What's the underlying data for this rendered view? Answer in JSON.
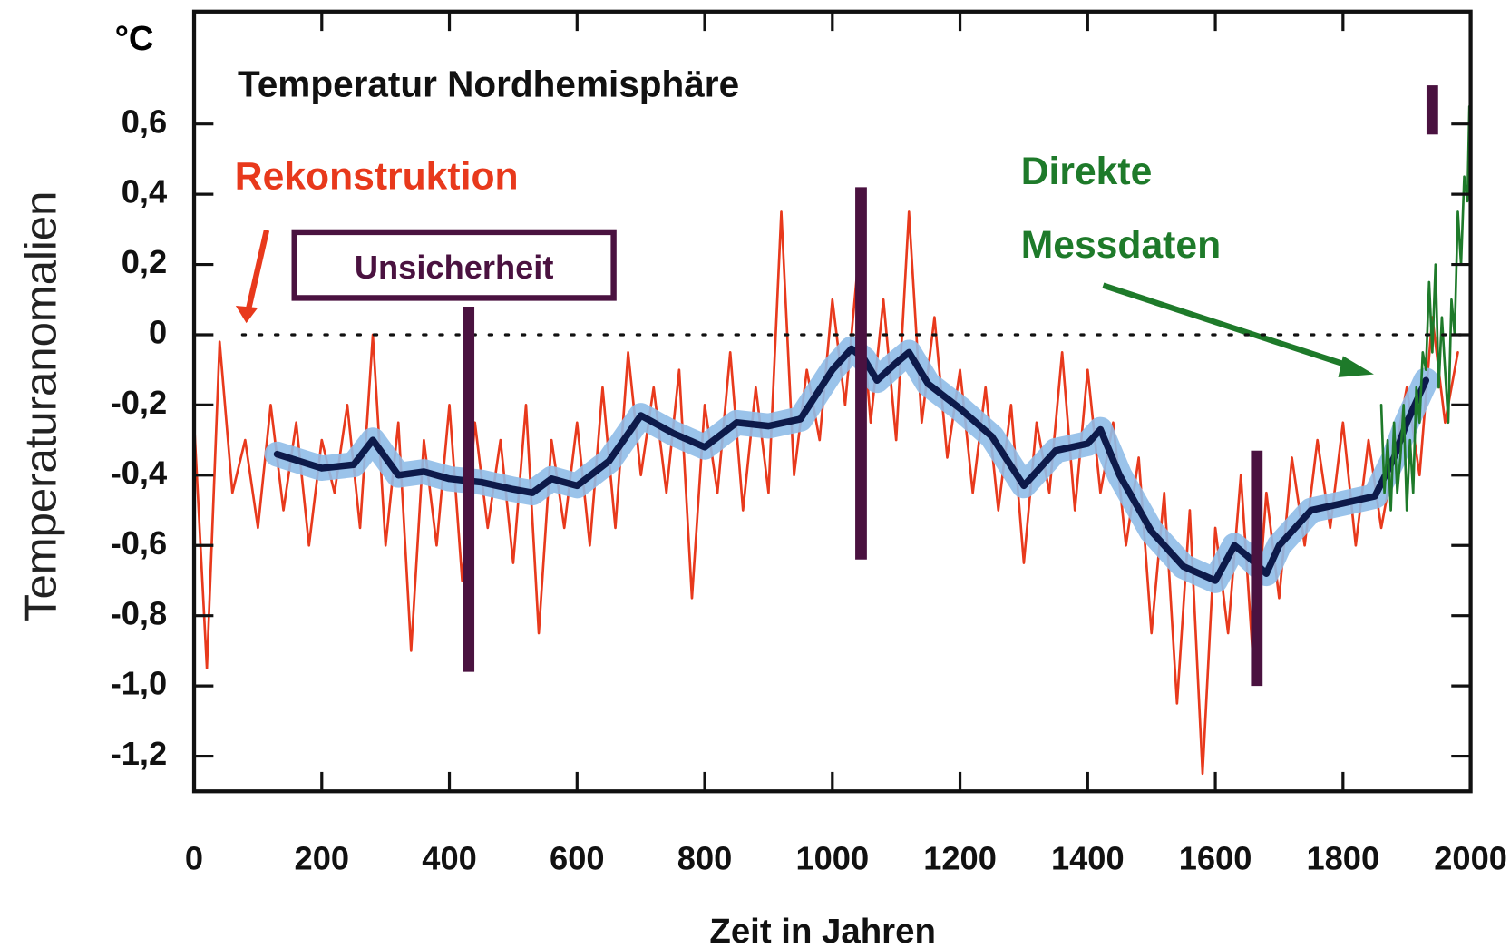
{
  "chart_data": {
    "type": "line",
    "title": "Temperatur Nordhemisphäre",
    "y_unit": "°C",
    "x_label": "Zeit in Jahren",
    "y_label": "Temperaturanomalien",
    "xlim": [
      0,
      2000
    ],
    "ylim": [
      -1.3,
      0.92
    ],
    "xticks": [
      0,
      200,
      400,
      600,
      800,
      1000,
      1200,
      1400,
      1600,
      1800,
      2000
    ],
    "yticks": [
      {
        "value": 0.6,
        "label": "0,6"
      },
      {
        "value": 0.4,
        "label": "0,4"
      },
      {
        "value": 0.2,
        "label": "0,2"
      },
      0,
      {
        "value": -0.2,
        "label": "-0,2"
      },
      {
        "value": -0.4,
        "label": "-0,4"
      },
      {
        "value": -0.6,
        "label": "-0,6"
      },
      {
        "value": -0.8,
        "label": "-0,8"
      },
      {
        "value": -1.0,
        "label": "-1,0"
      },
      {
        "value": -1.2,
        "label": "-1,2"
      }
    ],
    "zero_line": true,
    "series": [
      {
        "name": "Rekonstruktion",
        "color": "#e8391c",
        "x": [
          0,
          20,
          40,
          60,
          80,
          100,
          120,
          140,
          160,
          180,
          200,
          220,
          240,
          260,
          280,
          300,
          320,
          340,
          360,
          380,
          400,
          420,
          440,
          460,
          480,
          500,
          520,
          540,
          560,
          580,
          600,
          620,
          640,
          660,
          680,
          700,
          720,
          740,
          760,
          780,
          800,
          820,
          840,
          860,
          880,
          900,
          920,
          940,
          960,
          980,
          1000,
          1020,
          1040,
          1060,
          1080,
          1100,
          1120,
          1140,
          1160,
          1180,
          1200,
          1220,
          1240,
          1260,
          1280,
          1300,
          1320,
          1340,
          1360,
          1380,
          1400,
          1420,
          1440,
          1460,
          1480,
          1500,
          1520,
          1540,
          1560,
          1580,
          1600,
          1620,
          1640,
          1660,
          1680,
          1700,
          1720,
          1740,
          1760,
          1780,
          1800,
          1820,
          1840,
          1860,
          1880,
          1900,
          1920,
          1940,
          1960,
          1980
        ],
        "values": [
          -0.25,
          -0.95,
          -0.02,
          -0.45,
          -0.3,
          -0.55,
          -0.2,
          -0.5,
          -0.25,
          -0.6,
          -0.3,
          -0.45,
          -0.2,
          -0.55,
          0.0,
          -0.6,
          -0.25,
          -0.9,
          -0.3,
          -0.6,
          -0.2,
          -0.7,
          -0.25,
          -0.55,
          -0.3,
          -0.65,
          -0.2,
          -0.85,
          -0.3,
          -0.55,
          -0.25,
          -0.6,
          -0.15,
          -0.55,
          -0.05,
          -0.4,
          -0.15,
          -0.45,
          -0.1,
          -0.75,
          -0.2,
          -0.45,
          -0.05,
          -0.5,
          -0.15,
          -0.45,
          0.35,
          -0.4,
          -0.1,
          -0.3,
          0.1,
          -0.2,
          0.2,
          -0.25,
          0.1,
          -0.3,
          0.35,
          -0.25,
          0.05,
          -0.35,
          -0.1,
          -0.45,
          -0.15,
          -0.5,
          -0.2,
          -0.65,
          -0.25,
          -0.45,
          -0.05,
          -0.5,
          -0.1,
          -0.45,
          -0.25,
          -0.6,
          -0.35,
          -0.85,
          -0.45,
          -1.05,
          -0.5,
          -1.25,
          -0.55,
          -0.85,
          -0.4,
          -0.95,
          -0.45,
          -0.75,
          -0.35,
          -0.6,
          -0.3,
          -0.55,
          -0.25,
          -0.6,
          -0.3,
          -0.55,
          -0.35,
          -0.15,
          -0.4,
          0.05,
          -0.25,
          -0.05
        ]
      },
      {
        "color": "#0d1a4a",
        "band_color": "#8fbde8",
        "smoothed": true,
        "x": [
          130,
          200,
          250,
          280,
          320,
          360,
          400,
          450,
          500,
          530,
          560,
          600,
          650,
          700,
          750,
          800,
          850,
          900,
          950,
          1000,
          1030,
          1050,
          1070,
          1100,
          1120,
          1150,
          1200,
          1250,
          1300,
          1350,
          1400,
          1420,
          1450,
          1500,
          1550,
          1600,
          1630,
          1650,
          1680,
          1700,
          1750,
          1800,
          1850,
          1880,
          1900,
          1930
        ],
        "values": [
          -0.34,
          -0.38,
          -0.37,
          -0.3,
          -0.4,
          -0.39,
          -0.41,
          -0.42,
          -0.44,
          -0.45,
          -0.41,
          -0.43,
          -0.36,
          -0.23,
          -0.28,
          -0.32,
          -0.25,
          -0.26,
          -0.24,
          -0.1,
          -0.04,
          -0.07,
          -0.13,
          -0.08,
          -0.05,
          -0.14,
          -0.21,
          -0.29,
          -0.43,
          -0.33,
          -0.31,
          -0.27,
          -0.4,
          -0.56,
          -0.66,
          -0.7,
          -0.6,
          -0.63,
          -0.68,
          -0.6,
          -0.5,
          -0.48,
          -0.46,
          -0.35,
          -0.25,
          -0.13
        ]
      },
      {
        "color": "#1e7a2a",
        "x": [
          1860,
          1865,
          1870,
          1875,
          1880,
          1885,
          1890,
          1895,
          1900,
          1905,
          1910,
          1915,
          1920,
          1925,
          1930,
          1935,
          1940,
          1945,
          1950,
          1955,
          1960,
          1965,
          1970,
          1975,
          1980,
          1985,
          1990,
          1995,
          1998
        ],
        "values": [
          -0.2,
          -0.45,
          -0.3,
          -0.5,
          -0.25,
          -0.45,
          -0.35,
          -0.2,
          -0.5,
          -0.3,
          -0.45,
          -0.15,
          -0.25,
          -0.05,
          -0.1,
          0.15,
          -0.05,
          0.2,
          -0.15,
          0.05,
          -0.1,
          -0.25,
          0.1,
          0.0,
          0.35,
          0.2,
          0.45,
          0.38,
          0.65
        ]
      }
    ],
    "uncertainty": {
      "label": "Unsicherheit",
      "color": "#4a1240",
      "bars": [
        {
          "x": 430,
          "low": -0.96,
          "high": 0.08
        },
        {
          "x": 1045,
          "low": -0.64,
          "high": 0.42
        },
        {
          "x": 1665,
          "low": -1.0,
          "high": -0.33
        },
        {
          "x": 1940,
          "low": 0.57,
          "high": 0.71
        }
      ]
    },
    "annotations": [
      "Direkte",
      "Messdaten"
    ]
  }
}
